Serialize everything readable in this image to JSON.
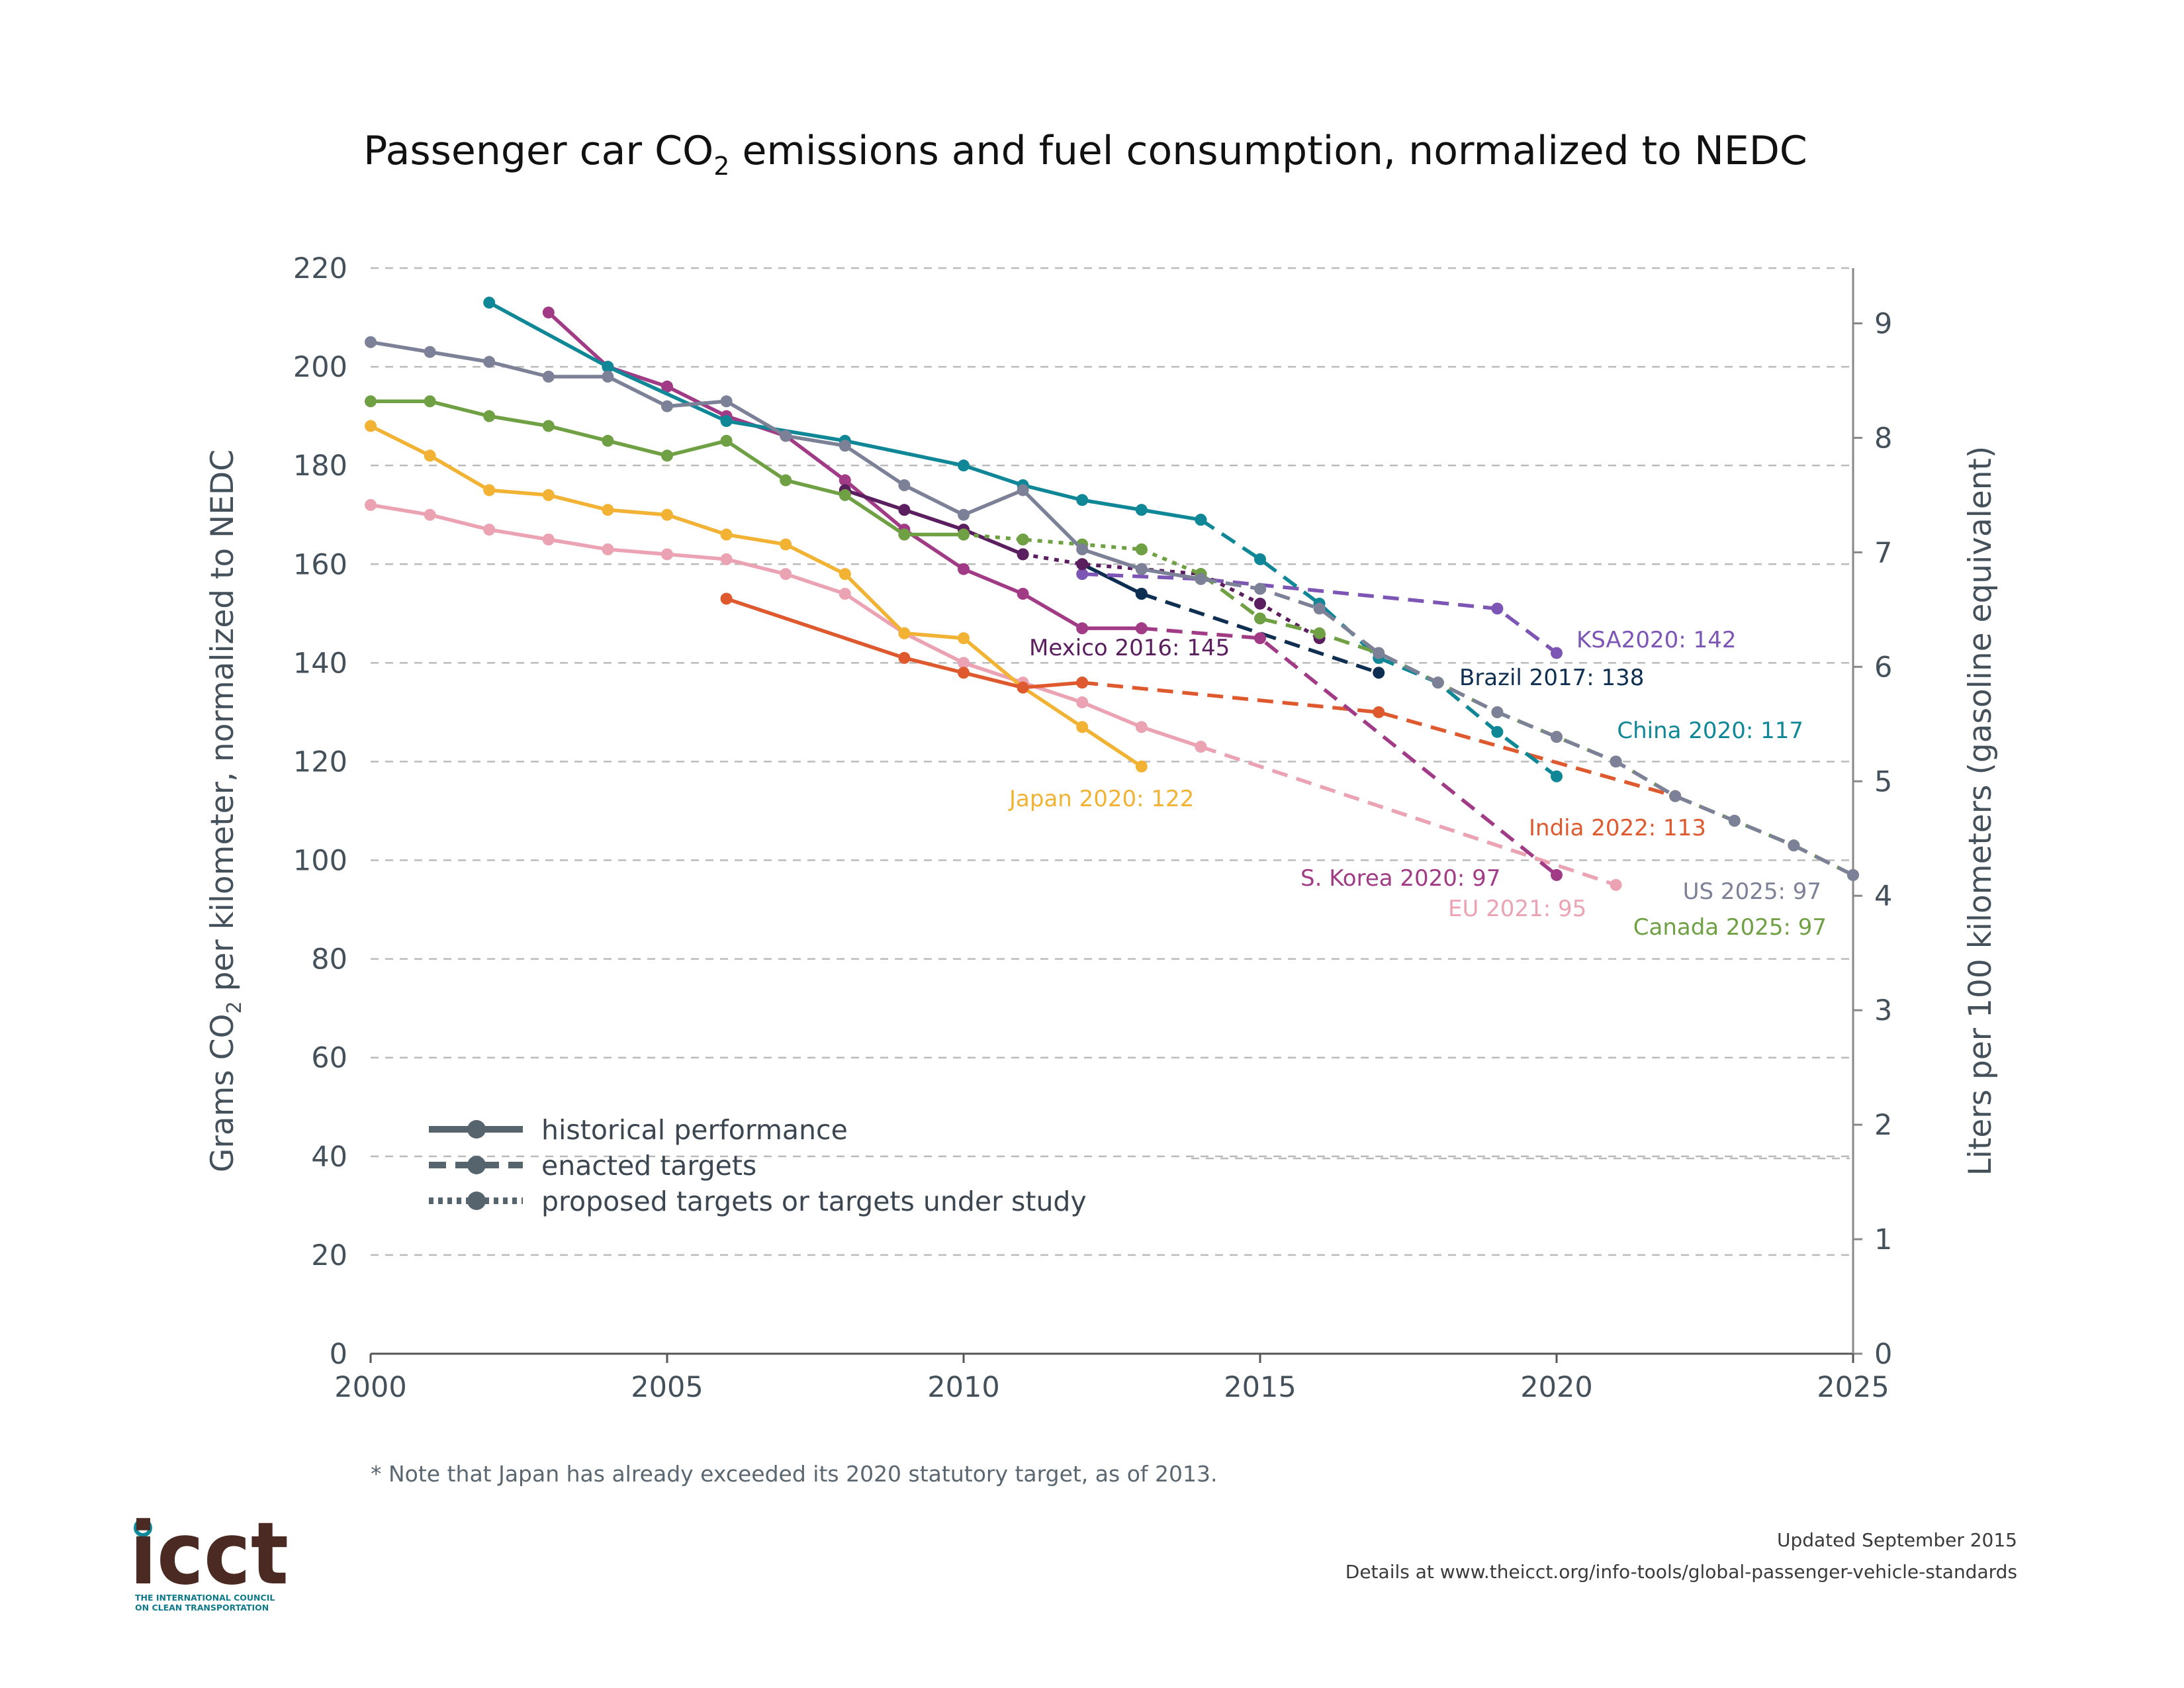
{
  "title": "Passenger car CO",
  "title_sub": "2",
  "title_rest": " emissions and fuel consumption, normalized to NEDC",
  "y_left_label_a": "Grams CO",
  "y_left_label_sub": "2",
  "y_left_label_b": " per kilometer, normalized to NEDC",
  "y_right_label": "Liters per 100 kilometers (gasoline equivalent)",
  "note": "* Note that Japan has already exceeded its 2020 statutory target, as of 2013.",
  "updated": "Updated September 2015",
  "details": "Details at www.theicct.org/info-tools/global-passenger-vehicle-standards",
  "logo": {
    "name": "icct",
    "line1": "THE INTERNATIONAL COUNCIL",
    "line2": "ON CLEAN TRANSPORTATION",
    "dot_color": "#0e8a9a",
    "text_color": "#4a2a22"
  },
  "legend": [
    {
      "label": "historical performance",
      "style": "solid"
    },
    {
      "label": "enacted targets",
      "style": "dashed"
    },
    {
      "label": "proposed targets or targets under study",
      "style": "dotted"
    }
  ],
  "chart_data": {
    "type": "line",
    "xlim": [
      2000,
      2025
    ],
    "ylim": [
      0,
      220
    ],
    "x_ticks": [
      2000,
      2005,
      2010,
      2015,
      2020,
      2025
    ],
    "y_ticks": [
      0,
      20,
      40,
      60,
      80,
      100,
      120,
      140,
      160,
      180,
      200,
      220
    ],
    "y2_ticks": [
      0,
      1,
      2,
      3,
      4,
      5,
      6,
      7,
      8,
      9
    ],
    "y2_per_liter": 23.2,
    "grid": "horizontal dashed",
    "legend_position": "bottom-left",
    "series": [
      {
        "name": "US",
        "label": "US 2025: 97",
        "color": "#7d8197",
        "historical": [
          [
            2000,
            205
          ],
          [
            2001,
            203
          ],
          [
            2002,
            201
          ],
          [
            2003,
            198
          ],
          [
            2004,
            198
          ],
          [
            2005,
            192
          ],
          [
            2006,
            193
          ],
          [
            2007,
            186
          ],
          [
            2008,
            184
          ],
          [
            2009,
            176
          ],
          [
            2010,
            170
          ],
          [
            2011,
            175
          ],
          [
            2012,
            163
          ],
          [
            2013,
            159
          ],
          [
            2014,
            157
          ]
        ],
        "enacted": [
          [
            2014,
            157
          ],
          [
            2015,
            155
          ],
          [
            2016,
            151
          ],
          [
            2017,
            142
          ],
          [
            2018,
            136
          ],
          [
            2019,
            130
          ],
          [
            2020,
            125
          ],
          [
            2021,
            120
          ],
          [
            2022,
            113
          ],
          [
            2023,
            108
          ],
          [
            2024,
            103
          ],
          [
            2025,
            97
          ]
        ],
        "proposed": []
      },
      {
        "name": "Canada",
        "label": "Canada 2025: 97",
        "color": "#6fa043",
        "historical": [
          [
            2000,
            193
          ],
          [
            2001,
            193
          ],
          [
            2002,
            190
          ],
          [
            2003,
            188
          ],
          [
            2004,
            185
          ],
          [
            2005,
            182
          ],
          [
            2006,
            185
          ],
          [
            2007,
            177
          ],
          [
            2008,
            174
          ],
          [
            2009,
            166
          ],
          [
            2010,
            166
          ]
        ],
        "enacted": [
          [
            2014,
            158
          ],
          [
            2015,
            149
          ],
          [
            2016,
            146
          ],
          [
            2017,
            142
          ],
          [
            2018,
            136
          ],
          [
            2019,
            130
          ],
          [
            2020,
            125
          ],
          [
            2021,
            120
          ],
          [
            2022,
            113
          ],
          [
            2023,
            108
          ],
          [
            2024,
            103
          ],
          [
            2025,
            97
          ]
        ],
        "proposed": [
          [
            2010,
            166
          ],
          [
            2011,
            165
          ],
          [
            2012,
            164
          ],
          [
            2013,
            163
          ],
          [
            2014,
            158
          ]
        ]
      },
      {
        "name": "China",
        "label": "China 2020: 117",
        "color": "#0f8797",
        "historical": [
          [
            2002,
            213
          ],
          [
            2004,
            200
          ],
          [
            2006,
            189
          ],
          [
            2008,
            185
          ],
          [
            2010,
            180
          ],
          [
            2011,
            176
          ],
          [
            2012,
            173
          ],
          [
            2013,
            171
          ],
          [
            2014,
            169
          ]
        ],
        "enacted": [
          [
            2014,
            169
          ],
          [
            2015,
            161
          ],
          [
            2016,
            152
          ],
          [
            2017,
            141
          ],
          [
            2018,
            136
          ],
          [
            2019,
            126
          ],
          [
            2020,
            117
          ]
        ],
        "proposed": []
      },
      {
        "name": "Mexico",
        "label": "Mexico 2016: 145",
        "color": "#5b1f5f",
        "historical": [
          [
            2008,
            175
          ],
          [
            2009,
            171
          ],
          [
            2010,
            167
          ],
          [
            2011,
            162
          ]
        ],
        "enacted": [],
        "proposed": [
          [
            2011,
            162
          ],
          [
            2012,
            160
          ],
          [
            2013,
            159
          ],
          [
            2014,
            158
          ],
          [
            2015,
            152
          ],
          [
            2016,
            145
          ]
        ]
      },
      {
        "name": "S. Korea",
        "label": "S. Korea 2020: 97",
        "color": "#a23b86",
        "historical": [
          [
            2003,
            211
          ],
          [
            2004,
            200
          ],
          [
            2005,
            196
          ],
          [
            2006,
            190
          ],
          [
            2007,
            186
          ],
          [
            2008,
            177
          ],
          [
            2009,
            167
          ],
          [
            2010,
            159
          ],
          [
            2011,
            154
          ],
          [
            2012,
            147
          ],
          [
            2013,
            147
          ]
        ],
        "enacted": [
          [
            2013,
            147
          ],
          [
            2015,
            145
          ],
          [
            2020,
            97
          ]
        ],
        "proposed": []
      },
      {
        "name": "KSA",
        "label": "KSA2020: 142",
        "color": "#7c55b5",
        "historical": [],
        "enacted": [
          [
            2012,
            158
          ],
          [
            2014,
            157
          ],
          [
            2019,
            151
          ],
          [
            2020,
            142
          ]
        ],
        "proposed": []
      },
      {
        "name": "Brazil",
        "label": "Brazil 2017: 138",
        "color": "#0f2f52",
        "historical": [
          [
            2012,
            160
          ],
          [
            2013,
            154
          ]
        ],
        "enacted": [
          [
            2013,
            154
          ],
          [
            2017,
            138
          ]
        ],
        "proposed": []
      },
      {
        "name": "India",
        "label": "India 2022: 113",
        "color": "#de5a2e",
        "historical": [
          [
            2006,
            153
          ],
          [
            2009,
            141
          ],
          [
            2010,
            138
          ],
          [
            2011,
            135
          ],
          [
            2012,
            136
          ]
        ],
        "enacted": [
          [
            2012,
            136
          ],
          [
            2017,
            130
          ],
          [
            2022,
            113
          ]
        ],
        "proposed": []
      },
      {
        "name": "Japan",
        "label": "Japan 2020: 122",
        "color": "#f2b233",
        "historical": [
          [
            2000,
            188
          ],
          [
            2001,
            182
          ],
          [
            2002,
            175
          ],
          [
            2003,
            174
          ],
          [
            2004,
            171
          ],
          [
            2005,
            170
          ],
          [
            2006,
            166
          ],
          [
            2007,
            164
          ],
          [
            2008,
            158
          ],
          [
            2009,
            146
          ],
          [
            2010,
            145
          ],
          [
            2011,
            135
          ],
          [
            2012,
            127
          ],
          [
            2013,
            119
          ]
        ],
        "enacted": [],
        "proposed": []
      },
      {
        "name": "EU",
        "label": "EU 2021: 95",
        "color": "#eba2b3",
        "historical": [
          [
            2000,
            172
          ],
          [
            2001,
            170
          ],
          [
            2002,
            167
          ],
          [
            2003,
            165
          ],
          [
            2004,
            163
          ],
          [
            2005,
            162
          ],
          [
            2006,
            161
          ],
          [
            2007,
            158
          ],
          [
            2008,
            154
          ],
          [
            2009,
            146
          ],
          [
            2010,
            140
          ],
          [
            2011,
            136
          ],
          [
            2012,
            132
          ],
          [
            2013,
            127
          ],
          [
            2014,
            123
          ]
        ],
        "enacted": [
          [
            2014,
            123
          ],
          [
            2021,
            95
          ]
        ],
        "proposed": []
      }
    ]
  }
}
